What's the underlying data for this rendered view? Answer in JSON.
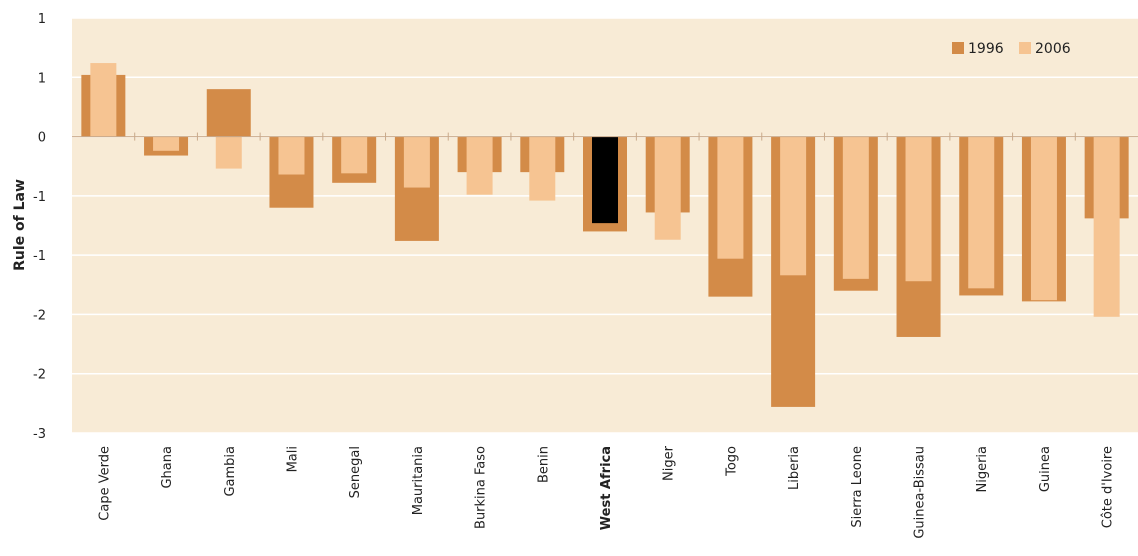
{
  "chart_data": {
    "type": "bar",
    "ylabel": "Rule of Law",
    "y_ticks": [
      "1",
      "1",
      "0",
      "-1",
      "-1",
      "-2",
      "-2",
      "-3"
    ],
    "ylim": [
      -2.5,
      1.0
    ],
    "grid": true,
    "legend_position": "top-right",
    "categories": [
      "Cape Verde",
      "Ghana",
      "Gambia",
      "Mali",
      "Senegal",
      "Mauritania",
      "Burkina Faso",
      "Benin",
      "West Africa",
      "Niger",
      "Togo",
      "Liberia",
      "Sierra Leone",
      "Guinea-Bissau",
      "Nigeria",
      "Guinea",
      "Côte d'Ivoire"
    ],
    "highlight_category": "West Africa",
    "series": [
      {
        "name": "1996",
        "color": "#d38b48",
        "values": [
          0.52,
          -0.16,
          0.4,
          -0.6,
          -0.39,
          -0.88,
          -0.3,
          -0.3,
          -0.8,
          -0.64,
          -1.35,
          -2.28,
          -1.3,
          -1.69,
          -1.34,
          -1.39,
          -0.69
        ]
      },
      {
        "name": "2006",
        "color": "#f6c492",
        "values": [
          0.62,
          -0.12,
          -0.27,
          -0.32,
          -0.31,
          -0.43,
          -0.49,
          -0.54,
          -0.73,
          -0.87,
          -1.03,
          -1.17,
          -1.2,
          -1.22,
          -1.28,
          -1.38,
          -1.52
        ]
      }
    ],
    "highlight_color": "#000000",
    "background": "#f8ebd6"
  }
}
